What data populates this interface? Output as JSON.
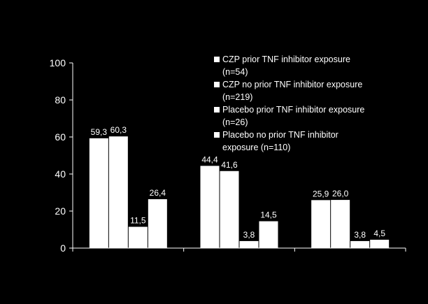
{
  "chart_data": {
    "type": "bar",
    "categories": [
      "",
      "",
      ""
    ],
    "series": [
      {
        "name": "CZP prior TNF inhibitor exposure\n(n=54)",
        "values": [
          59.3,
          44.4,
          25.9
        ],
        "labels": [
          "59,3",
          "44,4",
          "25,9"
        ]
      },
      {
        "name": "CZP no prior TNF inhibitor exposure\n(n=219)",
        "values": [
          60.3,
          41.6,
          26.0
        ],
        "labels": [
          "60,3",
          "41,6",
          "26,0"
        ]
      },
      {
        "name": "Placebo prior TNF inhibitor exposure\n(n=26)",
        "values": [
          11.5,
          3.8,
          3.8
        ],
        "labels": [
          "11,5",
          "3,8",
          "3,8"
        ]
      },
      {
        "name": "Placebo no prior TNF inhibitor\nexposure (n=110)",
        "values": [
          26.4,
          14.5,
          4.5
        ],
        "labels": [
          "26,4",
          "14,5",
          "4,5"
        ]
      }
    ],
    "yticks": [
      "0",
      "20",
      "40",
      "60",
      "80",
      "100"
    ],
    "ylim": [
      0,
      100
    ],
    "bar_color": "#ffffff",
    "background": "#000000",
    "legend_position": "top-right",
    "grid": false
  }
}
